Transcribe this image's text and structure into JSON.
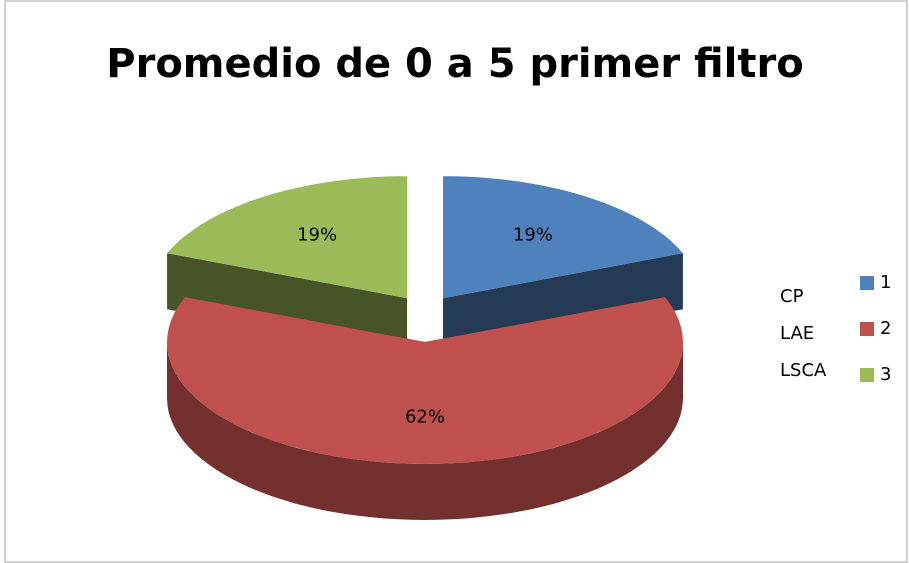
{
  "chart_data": {
    "type": "pie",
    "title": "Promedio de 0 a 5 primer filtro",
    "categories": [
      "1",
      "2",
      "3"
    ],
    "values": [
      19,
      62,
      19
    ],
    "value_labels": [
      "19%",
      "62%",
      "19%"
    ],
    "colors": [
      "#4f81bd",
      "#c0504d",
      "#9bbb59"
    ],
    "legend": "right",
    "annotations": [
      "CP",
      "LAE",
      "LSCA"
    ]
  }
}
